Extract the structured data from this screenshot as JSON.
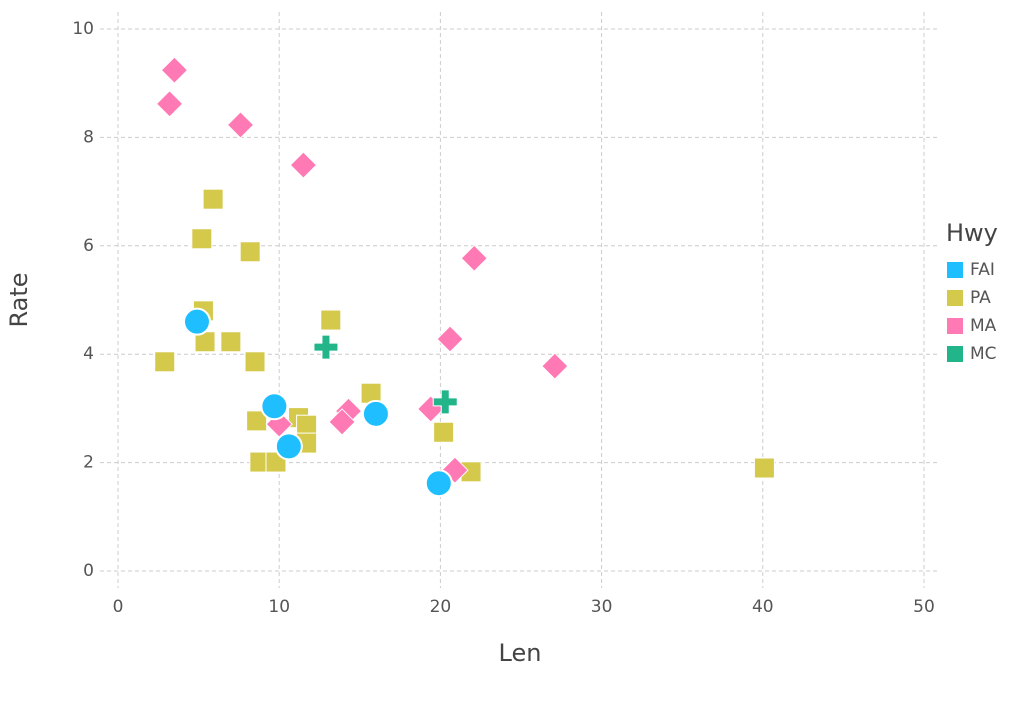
{
  "chart_data": {
    "type": "scatter",
    "x_label": "Len",
    "y_label": "Rate",
    "legend_title": "Hwy",
    "legend": "right",
    "grid": true,
    "xlim": [
      0,
      50
    ],
    "ylim": [
      0,
      10
    ],
    "xticks": [
      0,
      10,
      20,
      30,
      40,
      50
    ],
    "yticks": [
      0,
      2,
      4,
      6,
      8,
      10
    ],
    "series": [
      {
        "name": "FAI",
        "color": "#1fbfff",
        "marker": "circle",
        "x": [
          4.9,
          9.7,
          10.6,
          16.0,
          19.9
        ],
        "values": [
          4.6,
          3.04,
          2.3,
          2.9,
          1.62
        ]
      },
      {
        "name": "PA",
        "color": "#d4c94a",
        "marker": "square",
        "x": [
          2.9,
          5.2,
          5.9,
          5.3,
          5.4,
          7.0,
          8.2,
          8.5,
          8.6,
          8.8,
          9.8,
          11.2,
          11.7,
          11.7,
          13.2,
          15.7,
          20.2,
          21.9,
          40.1
        ],
        "values": [
          3.86,
          6.13,
          6.86,
          4.8,
          4.23,
          4.23,
          5.89,
          3.86,
          2.77,
          2.01,
          2.01,
          2.83,
          2.69,
          2.36,
          4.63,
          3.28,
          2.56,
          1.83,
          1.9
        ]
      },
      {
        "name": "MA",
        "color": "#ff79b4",
        "marker": "diamond",
        "x": [
          3.5,
          3.2,
          7.6,
          11.5,
          22.1,
          20.6,
          27.1,
          19.4,
          14.3,
          13.9,
          20.9,
          10.0
        ],
        "values": [
          9.24,
          8.62,
          8.23,
          7.49,
          5.77,
          4.28,
          3.78,
          2.99,
          2.95,
          2.75,
          1.86,
          2.71
        ]
      },
      {
        "name": "MC",
        "color": "#22b58a",
        "marker": "plus",
        "x": [
          12.9,
          20.3
        ],
        "values": [
          4.13,
          3.12
        ]
      }
    ]
  }
}
